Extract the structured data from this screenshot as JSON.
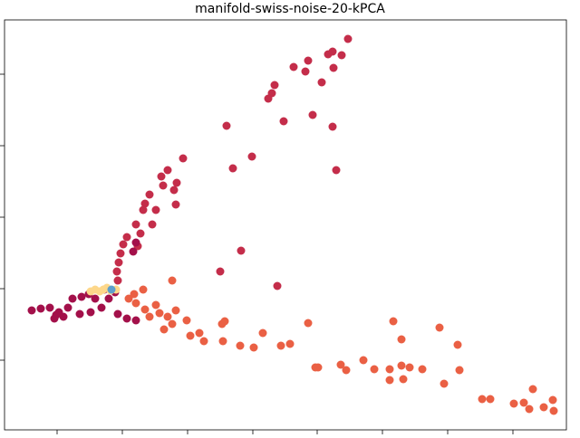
{
  "chart_data": {
    "type": "scatter",
    "title": "manifold-swiss-noise-20-kPCA",
    "xlim": [
      5,
      625
    ],
    "ylim": [
      5,
      458
    ],
    "xticks": [
      63,
      135,
      207,
      279,
      350,
      422,
      494,
      566
    ],
    "yticks": [
      82,
      161,
      240,
      319,
      398
    ],
    "series": [
      {
        "color": "#c42d4a",
        "x": [
          384,
          362,
          367,
          377,
          340,
          324,
          337,
          368,
          303,
          300,
          296,
          355,
          345,
          313,
          367,
          250,
          371,
          278,
          257,
          202,
          185,
          178,
          195,
          180,
          192,
          165,
          194,
          160,
          158,
          172,
          168,
          150,
          155,
          152,
          266,
          243,
          306,
          140,
          136,
          133,
          131,
          129,
          130
        ],
        "y": [
          437,
          420,
          423,
          419,
          413,
          406,
          401,
          405,
          386,
          377,
          371,
          389,
          353,
          346,
          340,
          341,
          292,
          307,
          294,
          305,
          292,
          285,
          278,
          275,
          270,
          265,
          254,
          255,
          248,
          248,
          232,
          232,
          222,
          208,
          203,
          180,
          164,
          218,
          210,
          200,
          190,
          180,
          170
        ]
      },
      {
        "color": "#a3104a",
        "x": [
          35,
          45,
          55,
          60,
          65,
          75,
          80,
          90,
          100,
          112,
          120,
          130,
          140,
          150,
          70,
          88,
          62,
          98,
          115,
          127,
          105,
          150,
          147
        ],
        "y": [
          137,
          139,
          140,
          128,
          135,
          140,
          150,
          152,
          135,
          140,
          150,
          133,
          128,
          126,
          130,
          133,
          132,
          155,
          160,
          157,
          150,
          212,
          202
        ]
      },
      {
        "color": "#ea6044",
        "x": [
          190,
          194,
          172,
          160,
          165,
          176,
          185,
          206,
          181,
          190,
          248,
          245,
          210,
          220,
          225,
          246,
          265,
          280,
          290,
          310,
          320,
          340,
          348,
          351,
          376,
          382,
          401,
          413,
          430,
          443,
          452,
          466,
          434,
          443,
          485,
          505,
          507,
          490,
          430,
          445,
          532,
          541,
          567,
          578,
          584,
          588,
          600,
          610,
          611,
          158,
          148,
          142,
          150
        ],
        "y": [
          170,
          137,
          143,
          138,
          130,
          134,
          130,
          126,
          116,
          122,
          125,
          122,
          109,
          112,
          103,
          103,
          98,
          96,
          112,
          98,
          100,
          123,
          74,
          74,
          77,
          71,
          82,
          72,
          72,
          76,
          74,
          72,
          125,
          105,
          118,
          99,
          71,
          56,
          60,
          61,
          39,
          39,
          34,
          35,
          28,
          50,
          30,
          38,
          26,
          160,
          155,
          150,
          145
        ]
      },
      {
        "color": "#fdd78a",
        "x": [
          100,
          105,
          110,
          114,
          118,
          122,
          128
        ],
        "y": [
          158,
          160,
          158,
          160,
          162,
          159,
          160
        ]
      },
      {
        "color": "#5e9fcc",
        "x": [
          123
        ],
        "y": [
          160
        ]
      }
    ]
  }
}
